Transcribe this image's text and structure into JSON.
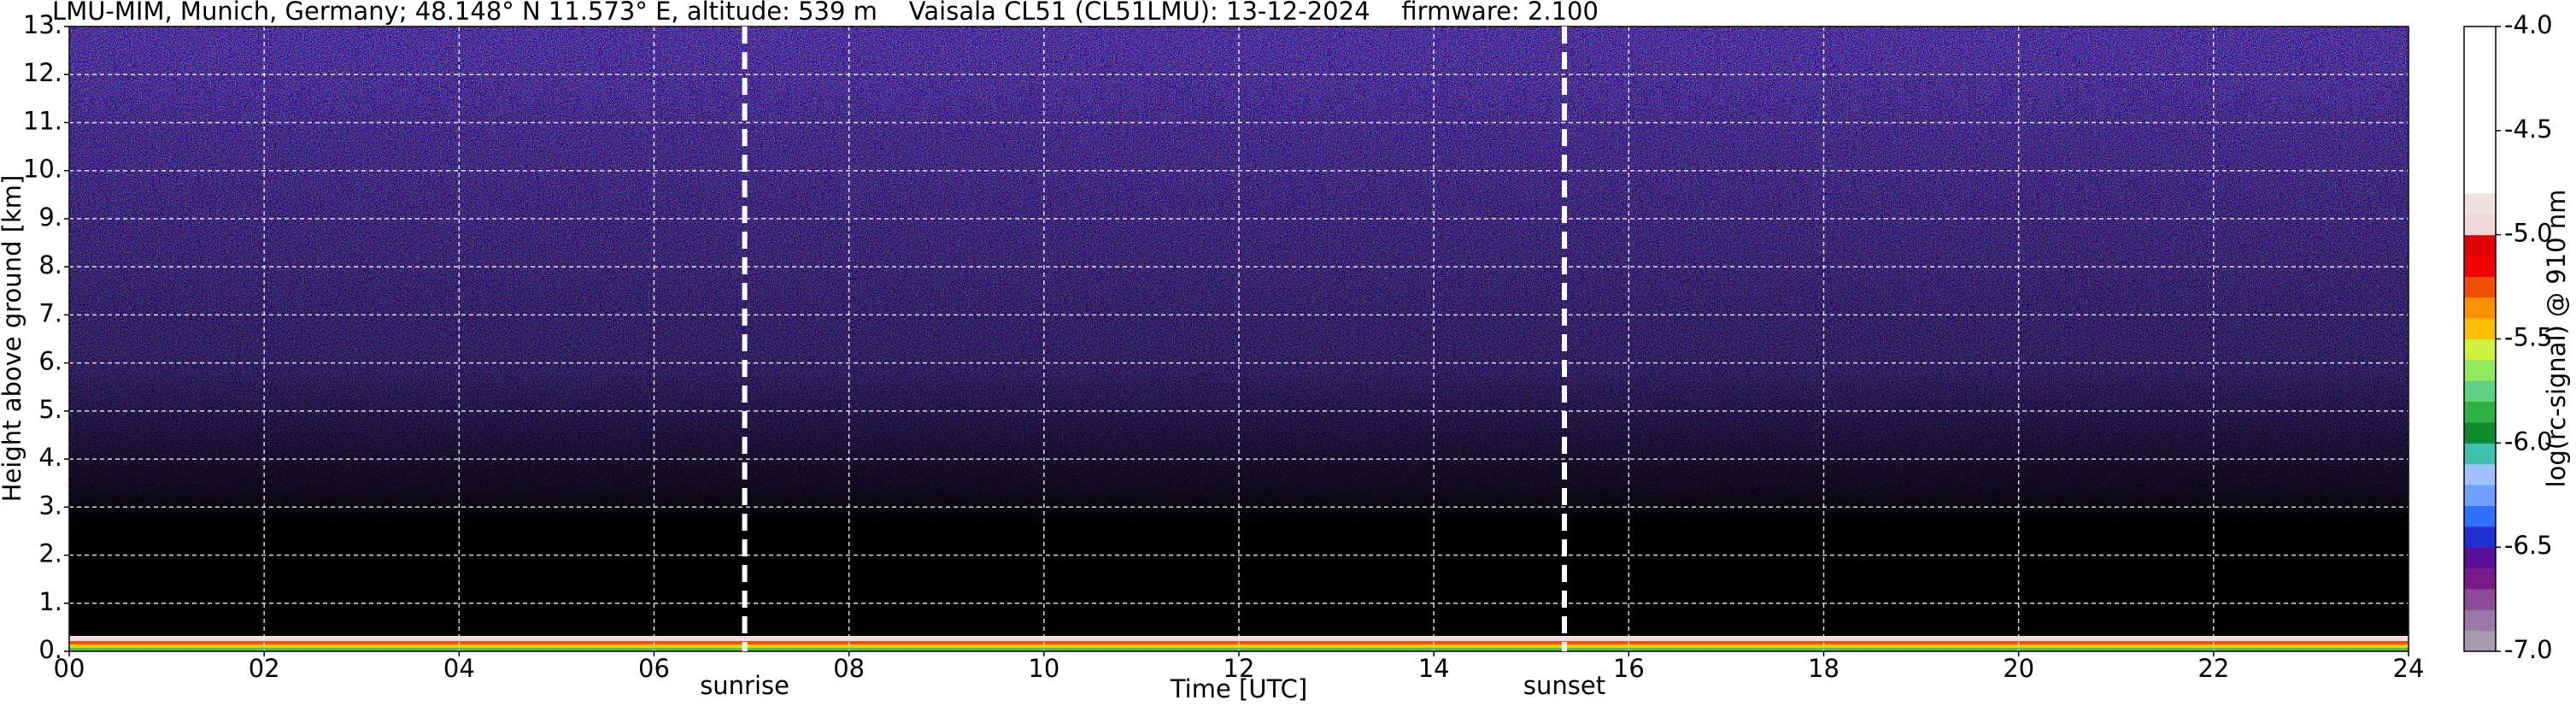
{
  "chart_data": {
    "type": "heatmap",
    "title": "LMU-MIM, Munich, Germany; 48.148° N 11.573° E, altitude: 539 m    Vaisala CL51 (CL51LMU): 13-12-2024    firmware: 2.100",
    "xlabel": "Time [UTC]",
    "ylabel": "Height above ground [km]",
    "xlim": [
      0,
      24
    ],
    "ylim": [
      0,
      13
    ],
    "xticks": [
      {
        "value": 0,
        "label": "00"
      },
      {
        "value": 2,
        "label": "02"
      },
      {
        "value": 4,
        "label": "04"
      },
      {
        "value": 6,
        "label": "06"
      },
      {
        "value": 8,
        "label": "08"
      },
      10,
      12,
      14,
      16,
      18,
      20,
      22,
      24
    ],
    "yticks": [
      {
        "value": 0,
        "label": "0."
      },
      {
        "value": 1,
        "label": "1."
      },
      {
        "value": 2,
        "label": "2."
      },
      {
        "value": 3,
        "label": "3."
      },
      {
        "value": 4,
        "label": "4."
      },
      {
        "value": 5,
        "label": "5."
      },
      {
        "value": 6,
        "label": "6."
      },
      {
        "value": 7,
        "label": "7."
      },
      {
        "value": 8,
        "label": "8."
      },
      {
        "value": 9,
        "label": "9."
      },
      {
        "value": 10,
        "label": "10."
      },
      {
        "value": 11,
        "label": "11."
      },
      {
        "value": 12,
        "label": "12."
      },
      {
        "value": 13,
        "label": "13."
      }
    ],
    "grid": true,
    "annotations": [
      {
        "x": 6.93,
        "label": "sunrise"
      },
      {
        "x": 15.34,
        "label": "sunset"
      }
    ],
    "colorbar": {
      "label": "log(rc-signal) @ 910 nm",
      "clim": [
        -7,
        -4
      ],
      "ticks": [
        {
          "value": -7,
          "label": "-7.0"
        },
        {
          "value": -6.5,
          "label": "-6.5"
        },
        {
          "value": -6,
          "label": "-6.0"
        },
        -5.5,
        {
          "value": -5,
          "label": "-5.0"
        },
        -4.5,
        {
          "value": -4,
          "label": "-4.0"
        }
      ],
      "colors": [
        "#a898b0",
        "#9a78a8",
        "#8a4a98",
        "#7a1a88",
        "#5a0f9a",
        "#2030d0",
        "#3070ff",
        "#70a0ff",
        "#a0c0ff",
        "#40c0b0",
        "#108830",
        "#30b040",
        "#60d080",
        "#90e860",
        "#d0f040",
        "#f8c000",
        "#f89000",
        "#f05000",
        "#f00000",
        "#e00000",
        "#f0d8d8",
        "#f0e0e0",
        "#ffffff",
        "#ffffff",
        "#ffffff",
        "#ffffff",
        "#ffffff",
        "#ffffff",
        "#ffffff",
        "#ffffff"
      ]
    }
  }
}
